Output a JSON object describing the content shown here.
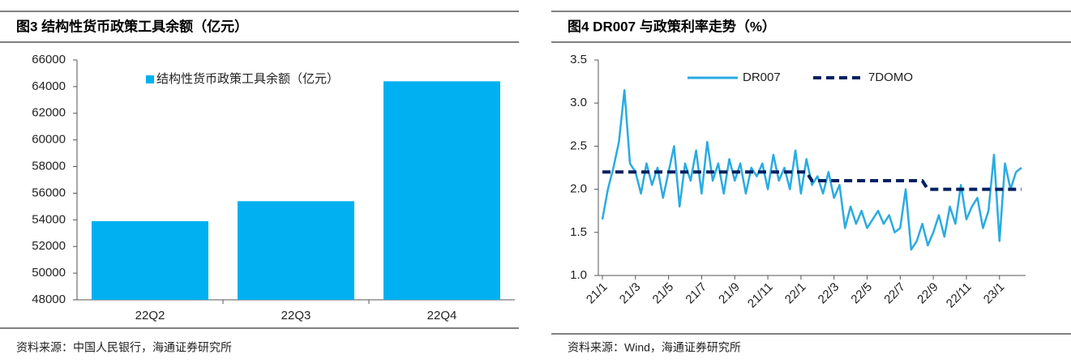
{
  "chart_data": [
    {
      "type": "bar",
      "title": "图3  结构性货币政策工具余额（亿元）",
      "source": "资料来源：中国人民银行，海通证券研究所",
      "categories": [
        "22Q2",
        "22Q3",
        "22Q4"
      ],
      "series": [
        {
          "name": "结构性货币政策工具余额（亿元）",
          "color": "#00b0f0",
          "values": [
            53900,
            55400,
            64400
          ]
        }
      ],
      "ylim": [
        48000,
        66000
      ],
      "yticks": [
        48000,
        50000,
        52000,
        54000,
        56000,
        58000,
        60000,
        62000,
        64000,
        66000
      ],
      "grid": false,
      "legend": "top"
    },
    {
      "type": "line",
      "title": "图4  DR007 与政策利率走势（%）",
      "source": "资料来源：Wind，海通证券研究所",
      "categories": [
        "21/1",
        null,
        null,
        null,
        null,
        null,
        "21/3",
        null,
        null,
        null,
        null,
        null,
        "21/5",
        null,
        null,
        null,
        null,
        null,
        "21/7",
        null,
        null,
        null,
        null,
        null,
        "21/9",
        null,
        null,
        null,
        null,
        null,
        "21/11",
        null,
        null,
        null,
        null,
        null,
        "22/1",
        null,
        null,
        null,
        null,
        null,
        "22/3",
        null,
        null,
        null,
        null,
        null,
        "22/5",
        null,
        null,
        null,
        null,
        null,
        "22/7",
        null,
        null,
        null,
        null,
        null,
        "22/9",
        null,
        null,
        null,
        null,
        null,
        "22/11",
        null,
        null,
        null,
        null,
        null,
        "23/1",
        null,
        null,
        null,
        null
      ],
      "series": [
        {
          "name": "DR007",
          "color": "#29abe2",
          "style": "solid",
          "values": [
            1.65,
            2.0,
            2.25,
            2.55,
            3.15,
            2.3,
            2.2,
            1.95,
            2.3,
            2.05,
            2.25,
            1.9,
            2.2,
            2.5,
            1.8,
            2.3,
            2.1,
            2.45,
            1.95,
            2.55,
            2.1,
            2.3,
            1.95,
            2.35,
            2.1,
            2.3,
            1.95,
            2.25,
            2.15,
            2.3,
            2.0,
            2.4,
            2.1,
            2.25,
            2.0,
            2.45,
            1.95,
            2.35,
            2.05,
            2.15,
            1.95,
            2.2,
            1.9,
            2.05,
            1.55,
            1.8,
            1.6,
            1.75,
            1.55,
            1.65,
            1.75,
            1.6,
            1.7,
            1.5,
            1.55,
            2.0,
            1.3,
            1.4,
            1.6,
            1.35,
            1.5,
            1.7,
            1.45,
            1.8,
            1.6,
            2.05,
            1.65,
            1.8,
            1.9,
            1.55,
            1.75,
            2.4,
            1.4,
            2.3,
            2.0,
            2.2,
            2.25
          ]
        },
        {
          "name": "7DOMO",
          "color": "#002060",
          "style": "dashed",
          "values": [
            2.2,
            2.2,
            2.2,
            2.2,
            2.2,
            2.2,
            2.2,
            2.2,
            2.2,
            2.2,
            2.2,
            2.2,
            2.2,
            2.2,
            2.2,
            2.2,
            2.2,
            2.2,
            2.2,
            2.2,
            2.2,
            2.2,
            2.2,
            2.2,
            2.2,
            2.2,
            2.2,
            2.2,
            2.2,
            2.2,
            2.2,
            2.2,
            2.2,
            2.2,
            2.2,
            2.2,
            2.2,
            2.2,
            2.1,
            2.1,
            2.1,
            2.1,
            2.1,
            2.1,
            2.1,
            2.1,
            2.1,
            2.1,
            2.1,
            2.1,
            2.1,
            2.1,
            2.1,
            2.1,
            2.1,
            2.1,
            2.1,
            2.1,
            2.1,
            2.0,
            2.0,
            2.0,
            2.0,
            2.0,
            2.0,
            2.0,
            2.0,
            2.0,
            2.0,
            2.0,
            2.0,
            2.0,
            2.0,
            2.0,
            2.0,
            2.0,
            2.0
          ]
        }
      ],
      "ylim": [
        1,
        3.5
      ],
      "yticks": [
        {
          "value": 1,
          "label": "1.0"
        },
        1.5,
        {
          "value": 2,
          "label": "2.0"
        },
        2.5,
        {
          "value": 3,
          "label": "3.0"
        },
        3.5
      ],
      "grid": false,
      "legend": "top"
    }
  ]
}
